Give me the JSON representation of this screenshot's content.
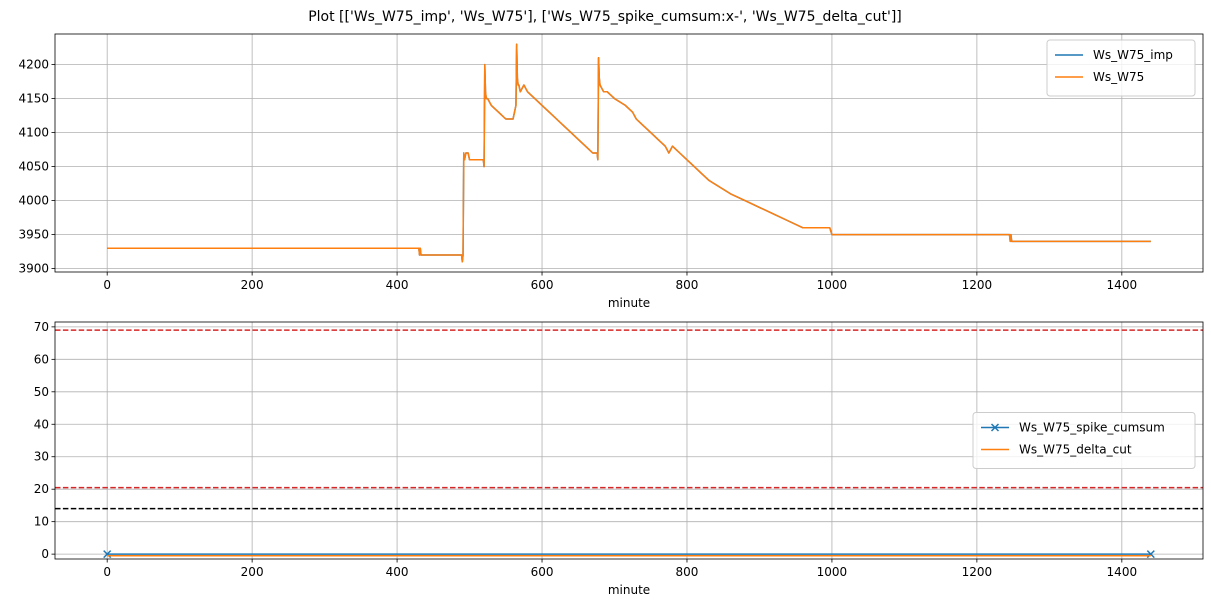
{
  "figure_title": "Plot [['Ws_W75_imp', 'Ws_W75'], ['Ws_W75_spike_cumsum:x-', 'Ws_W75_delta_cut']]",
  "chart_data": [
    {
      "type": "line",
      "xlabel": "minute",
      "ylabel": "",
      "xlim": [
        -72,
        1512
      ],
      "ylim": [
        3895,
        4245
      ],
      "xticks": [
        0,
        200,
        400,
        600,
        800,
        1000,
        1200,
        1400
      ],
      "yticks": [
        3900,
        3950,
        4000,
        4050,
        4100,
        4150,
        4200
      ],
      "grid": true,
      "legend_position": "upper right",
      "series": [
        {
          "name": "Ws_W75_imp",
          "color": "#1f77b4",
          "x": [
            0,
            430,
            431,
            432,
            433,
            434,
            489,
            490,
            491,
            492,
            493,
            495,
            498,
            500,
            519,
            520,
            521,
            522,
            523,
            525,
            530,
            540,
            550,
            560,
            564,
            565,
            566,
            567,
            568,
            570,
            575,
            580,
            590,
            600,
            610,
            620,
            630,
            640,
            650,
            660,
            670,
            676,
            677,
            678,
            679,
            680,
            685,
            690,
            700,
            715,
            725,
            730,
            740,
            750,
            760,
            770,
            775,
            780,
            790,
            800,
            810,
            820,
            830,
            845,
            860,
            880,
            900,
            920,
            940,
            960,
            997,
            1000,
            1245,
            1246,
            1247,
            1248,
            1250,
            1440
          ],
          "y": [
            3930,
            3930,
            3920,
            3930,
            3920,
            3920,
            3920,
            3910,
            3920,
            4070,
            4060,
            4070,
            4070,
            4060,
            4060,
            4050,
            4200,
            4160,
            4150,
            4150,
            4140,
            4130,
            4120,
            4120,
            4140,
            4230,
            4180,
            4170,
            4170,
            4160,
            4170,
            4160,
            4150,
            4140,
            4130,
            4120,
            4110,
            4100,
            4090,
            4080,
            4070,
            4070,
            4060,
            4210,
            4180,
            4170,
            4160,
            4160,
            4150,
            4140,
            4130,
            4120,
            4110,
            4100,
            4090,
            4080,
            4070,
            4080,
            4070,
            4060,
            4050,
            4040,
            4030,
            4020,
            4010,
            4000,
            3990,
            3980,
            3970,
            3960,
            3960,
            3950,
            3950,
            3940,
            3950,
            3940,
            3940,
            3940
          ]
        },
        {
          "name": "Ws_W75",
          "color": "#ff7f0e",
          "x": [
            0,
            430,
            431,
            432,
            433,
            434,
            489,
            490,
            491,
            492,
            493,
            495,
            498,
            500,
            519,
            520,
            521,
            522,
            523,
            525,
            530,
            540,
            550,
            560,
            564,
            565,
            566,
            567,
            568,
            570,
            575,
            580,
            590,
            600,
            610,
            620,
            630,
            640,
            650,
            660,
            670,
            676,
            677,
            678,
            679,
            680,
            685,
            690,
            700,
            715,
            725,
            730,
            740,
            750,
            760,
            770,
            775,
            780,
            790,
            800,
            810,
            820,
            830,
            845,
            860,
            880,
            900,
            920,
            940,
            960,
            997,
            1000,
            1245,
            1246,
            1247,
            1248,
            1250,
            1440
          ],
          "y": [
            3930,
            3930,
            3920,
            3930,
            3920,
            3920,
            3920,
            3910,
            3920,
            4070,
            4060,
            4070,
            4070,
            4060,
            4060,
            4050,
            4200,
            4160,
            4150,
            4150,
            4140,
            4130,
            4120,
            4120,
            4140,
            4230,
            4180,
            4170,
            4170,
            4160,
            4170,
            4160,
            4150,
            4140,
            4130,
            4120,
            4110,
            4100,
            4090,
            4080,
            4070,
            4070,
            4060,
            4210,
            4180,
            4170,
            4160,
            4160,
            4150,
            4140,
            4130,
            4120,
            4110,
            4100,
            4090,
            4080,
            4070,
            4080,
            4070,
            4060,
            4050,
            4040,
            4030,
            4020,
            4010,
            4000,
            3990,
            3980,
            3970,
            3960,
            3960,
            3950,
            3950,
            3940,
            3950,
            3940,
            3940,
            3940
          ]
        }
      ]
    },
    {
      "type": "line",
      "xlabel": "minute",
      "ylabel": "",
      "xlim": [
        -72,
        1512
      ],
      "ylim": [
        -1.5,
        71.5
      ],
      "xticks": [
        0,
        200,
        400,
        600,
        800,
        1000,
        1200,
        1400
      ],
      "yticks": [
        0,
        10,
        20,
        30,
        40,
        50,
        60,
        70
      ],
      "grid": true,
      "legend_position": "center right",
      "series": [
        {
          "name": "Ws_W75_spike_cumsum",
          "color": "#1f77b4",
          "marker": "x",
          "x": [
            0,
            1440
          ],
          "y": [
            0,
            0
          ]
        },
        {
          "name": "Ws_W75_delta_cut",
          "color": "#ff7f0e",
          "x": [
            0,
            1440
          ],
          "y": [
            -0.5,
            -0.5
          ]
        }
      ],
      "hlines": [
        {
          "y": 69,
          "color": "#d62728",
          "style": "dashed"
        },
        {
          "y": 20.5,
          "color": "#d62728",
          "style": "dashed"
        },
        {
          "y": 14,
          "color": "#000000",
          "style": "dashed"
        }
      ]
    }
  ]
}
